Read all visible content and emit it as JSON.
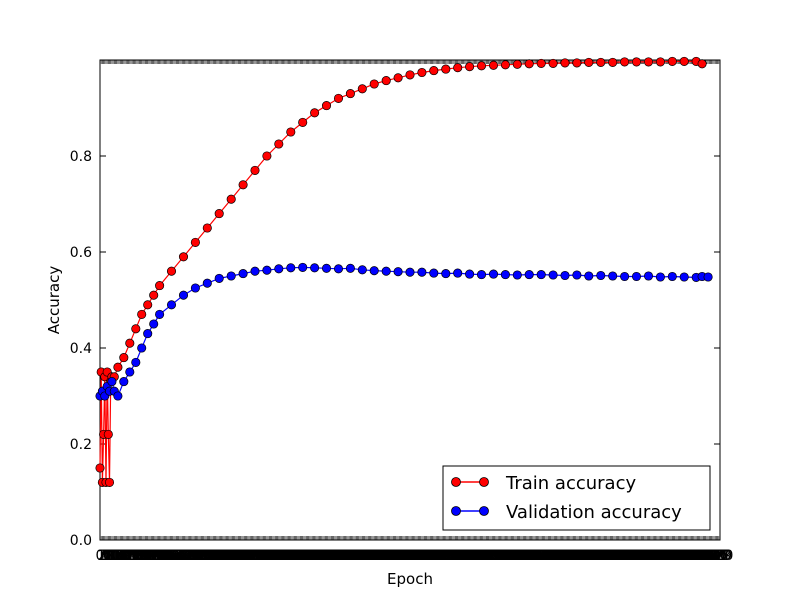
{
  "chart_data": {
    "type": "line",
    "xlabel": "Epoch",
    "ylabel": "Accuracy",
    "xlim": [
      0,
      520
    ],
    "ylim": [
      0,
      1.0
    ],
    "yticks": [
      "0.0",
      "0.2",
      "0.4",
      "0.6",
      "0.8"
    ],
    "ytick_values": [
      0.0,
      0.2,
      0.4,
      0.6,
      0.8
    ],
    "legend_position": "bottom-right",
    "grid": false,
    "series": [
      {
        "name": "Train accuracy",
        "color": "#ff0000",
        "marker": "circle",
        "x": [
          0,
          1,
          2,
          3,
          4,
          5,
          6,
          7,
          8,
          9,
          10,
          12,
          15,
          20,
          25,
          30,
          35,
          40,
          45,
          50,
          60,
          70,
          80,
          90,
          100,
          110,
          120,
          130,
          140,
          150,
          160,
          170,
          180,
          190,
          200,
          210,
          220,
          230,
          240,
          250,
          260,
          270,
          280,
          290,
          300,
          310,
          320,
          330,
          340,
          350,
          360,
          370,
          380,
          390,
          400,
          410,
          420,
          430,
          440,
          450,
          460,
          470,
          480,
          490,
          500,
          505
        ],
        "values": [
          0.15,
          0.35,
          0.12,
          0.22,
          0.34,
          0.12,
          0.35,
          0.22,
          0.12,
          0.33,
          0.34,
          0.34,
          0.36,
          0.38,
          0.41,
          0.44,
          0.47,
          0.49,
          0.51,
          0.53,
          0.56,
          0.59,
          0.62,
          0.65,
          0.68,
          0.71,
          0.74,
          0.77,
          0.8,
          0.825,
          0.85,
          0.87,
          0.89,
          0.905,
          0.92,
          0.93,
          0.94,
          0.95,
          0.957,
          0.963,
          0.969,
          0.974,
          0.978,
          0.981,
          0.984,
          0.986,
          0.988,
          0.989,
          0.99,
          0.991,
          0.992,
          0.993,
          0.993,
          0.994,
          0.994,
          0.995,
          0.995,
          0.995,
          0.996,
          0.996,
          0.996,
          0.996,
          0.997,
          0.997,
          0.997,
          0.992
        ]
      },
      {
        "name": "Validation accuracy",
        "color": "#0000ff",
        "marker": "circle",
        "x": [
          0,
          2,
          4,
          6,
          8,
          10,
          12,
          15,
          20,
          25,
          30,
          35,
          40,
          45,
          50,
          60,
          70,
          80,
          90,
          100,
          110,
          120,
          130,
          140,
          150,
          160,
          170,
          180,
          190,
          200,
          210,
          220,
          230,
          240,
          250,
          260,
          270,
          280,
          290,
          300,
          310,
          320,
          330,
          340,
          350,
          360,
          370,
          380,
          390,
          400,
          410,
          420,
          430,
          440,
          450,
          460,
          470,
          480,
          490,
          500,
          505,
          510
        ],
        "values": [
          0.3,
          0.31,
          0.3,
          0.32,
          0.31,
          0.33,
          0.31,
          0.3,
          0.33,
          0.35,
          0.37,
          0.4,
          0.43,
          0.45,
          0.47,
          0.49,
          0.51,
          0.525,
          0.535,
          0.545,
          0.55,
          0.555,
          0.56,
          0.562,
          0.565,
          0.567,
          0.568,
          0.567,
          0.566,
          0.565,
          0.566,
          0.563,
          0.561,
          0.56,
          0.559,
          0.558,
          0.558,
          0.556,
          0.555,
          0.556,
          0.554,
          0.553,
          0.554,
          0.553,
          0.552,
          0.553,
          0.553,
          0.552,
          0.551,
          0.552,
          0.55,
          0.551,
          0.55,
          0.549,
          0.549,
          0.55,
          0.548,
          0.549,
          0.548,
          0.547,
          0.549,
          0.548
        ]
      }
    ]
  }
}
